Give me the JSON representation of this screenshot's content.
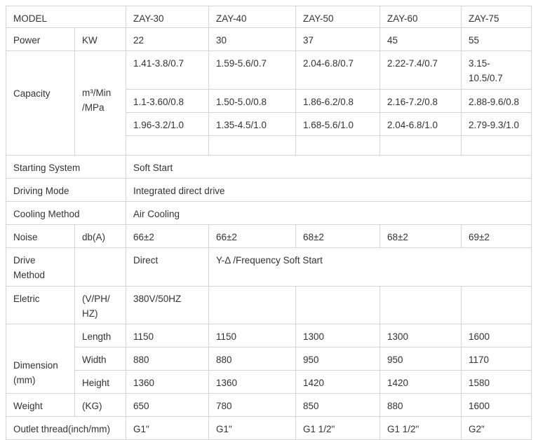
{
  "header": [
    "MODEL",
    "ZAY-30",
    "ZAY-40",
    "ZAY-50",
    "ZAY-60",
    "ZAY-75"
  ],
  "power": {
    "label": "Power",
    "unit": "KW",
    "values": [
      "22",
      "30",
      "37",
      "45",
      "55"
    ]
  },
  "capacity": {
    "label": "Capacity",
    "unit": "m³/Min /MPa",
    "rows": [
      [
        "1.41-3.8/0.7",
        "1.59-5.6/0.7",
        "2.04-6.8/0.7",
        "2.22-7.4/0.7",
        "3.15-10.5/0.7"
      ],
      [
        "1.1-3.60/0.8",
        "1.50-5.0/0.8",
        "1.86-6.2/0.8",
        "2.16-7.2/0.8",
        "2.88-9.6/0.8"
      ],
      [
        "1.96-3.2/1.0",
        "1.35-4.5/1.0",
        "1.68-5.6/1.0",
        "2.04-6.8/1.0",
        "2.79-9.3/1.0"
      ]
    ]
  },
  "starting": {
    "label": "Starting System",
    "value": "Soft Start"
  },
  "driving": {
    "label": "Driving Mode",
    "value": "Integrated direct drive"
  },
  "cooling": {
    "label": "Cooling Method",
    "value": "Air Cooling"
  },
  "noise": {
    "label": "Noise",
    "unit": "db(A)",
    "values": [
      "66±2",
      "66±2",
      "68±2",
      "68±2",
      "69±2"
    ]
  },
  "drive_method": {
    "label": "Drive Method",
    "values": [
      "Direct",
      "Y-Δ /Frequency Soft Start"
    ]
  },
  "electric": {
    "label": "Eletric",
    "unit": "(V/PH/ HZ)",
    "value": "380V/50HZ"
  },
  "dimension": {
    "label": "Dimension (mm)",
    "rows": [
      {
        "label": "Length",
        "values": [
          "1150",
          "1150",
          "1300",
          "1300",
          "1600"
        ]
      },
      {
        "label": "Width",
        "values": [
          "880",
          "880",
          "950",
          "950",
          "1170"
        ]
      },
      {
        "label": "Height",
        "values": [
          "1360",
          "1360",
          "1420",
          "1420",
          "1580"
        ]
      }
    ]
  },
  "weight": {
    "label": "Weight",
    "unit": "(KG)",
    "values": [
      "650",
      "780",
      "850",
      "880",
      "1600"
    ]
  },
  "outlet": {
    "label": "Outlet thread(inch/mm)",
    "values": [
      "G1\"",
      "G1\"",
      "G1 1/2\"",
      "G1 1/2\"",
      "G2\""
    ]
  }
}
